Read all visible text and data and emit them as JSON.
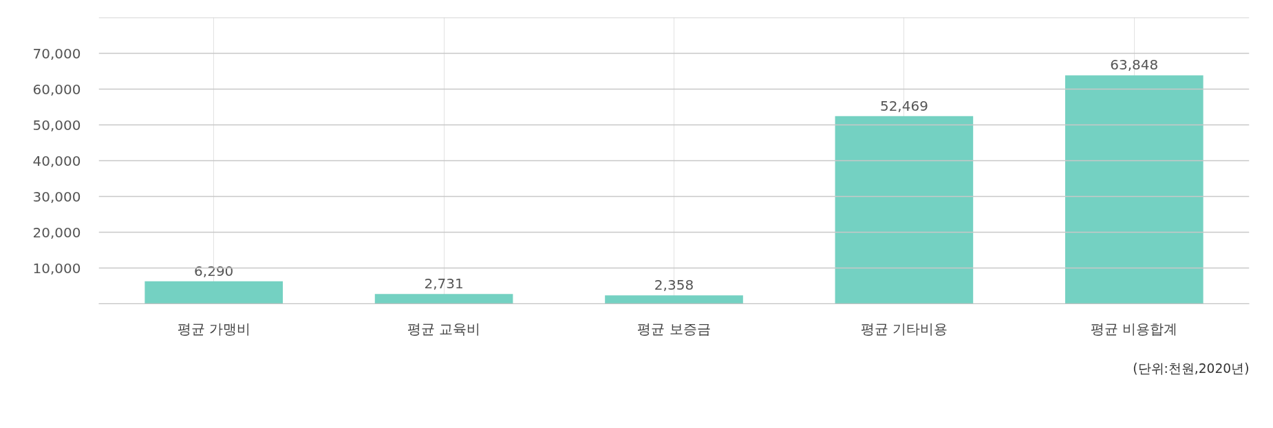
{
  "chart_data": {
    "type": "bar",
    "categories": [
      "평균 가맹비",
      "평균 교육비",
      "평균 보증금",
      "평균 기타비용",
      "평균 비용합계"
    ],
    "values": [
      6290,
      2731,
      2358,
      52469,
      63848
    ],
    "value_labels": [
      "6,290",
      "2,731",
      "2,358",
      "52,469",
      "63,848"
    ],
    "color": "#74d1c2",
    "ylim": [
      0,
      80000
    ],
    "yticks": [
      {
        "value": 0,
        "label": null
      },
      {
        "value": 10000,
        "label": "10,000"
      },
      {
        "value": 20000,
        "label": "20,000"
      },
      {
        "value": 30000,
        "label": "30,000"
      },
      {
        "value": 40000,
        "label": "40,000"
      },
      {
        "value": 50000,
        "label": "50,000"
      },
      {
        "value": 60000,
        "label": "60,000"
      },
      {
        "value": 70000,
        "label": "70,000"
      },
      {
        "value": 80000,
        "label": null
      }
    ],
    "grid": true,
    "annotations": [
      "(단위:천원,2020년)"
    ]
  }
}
